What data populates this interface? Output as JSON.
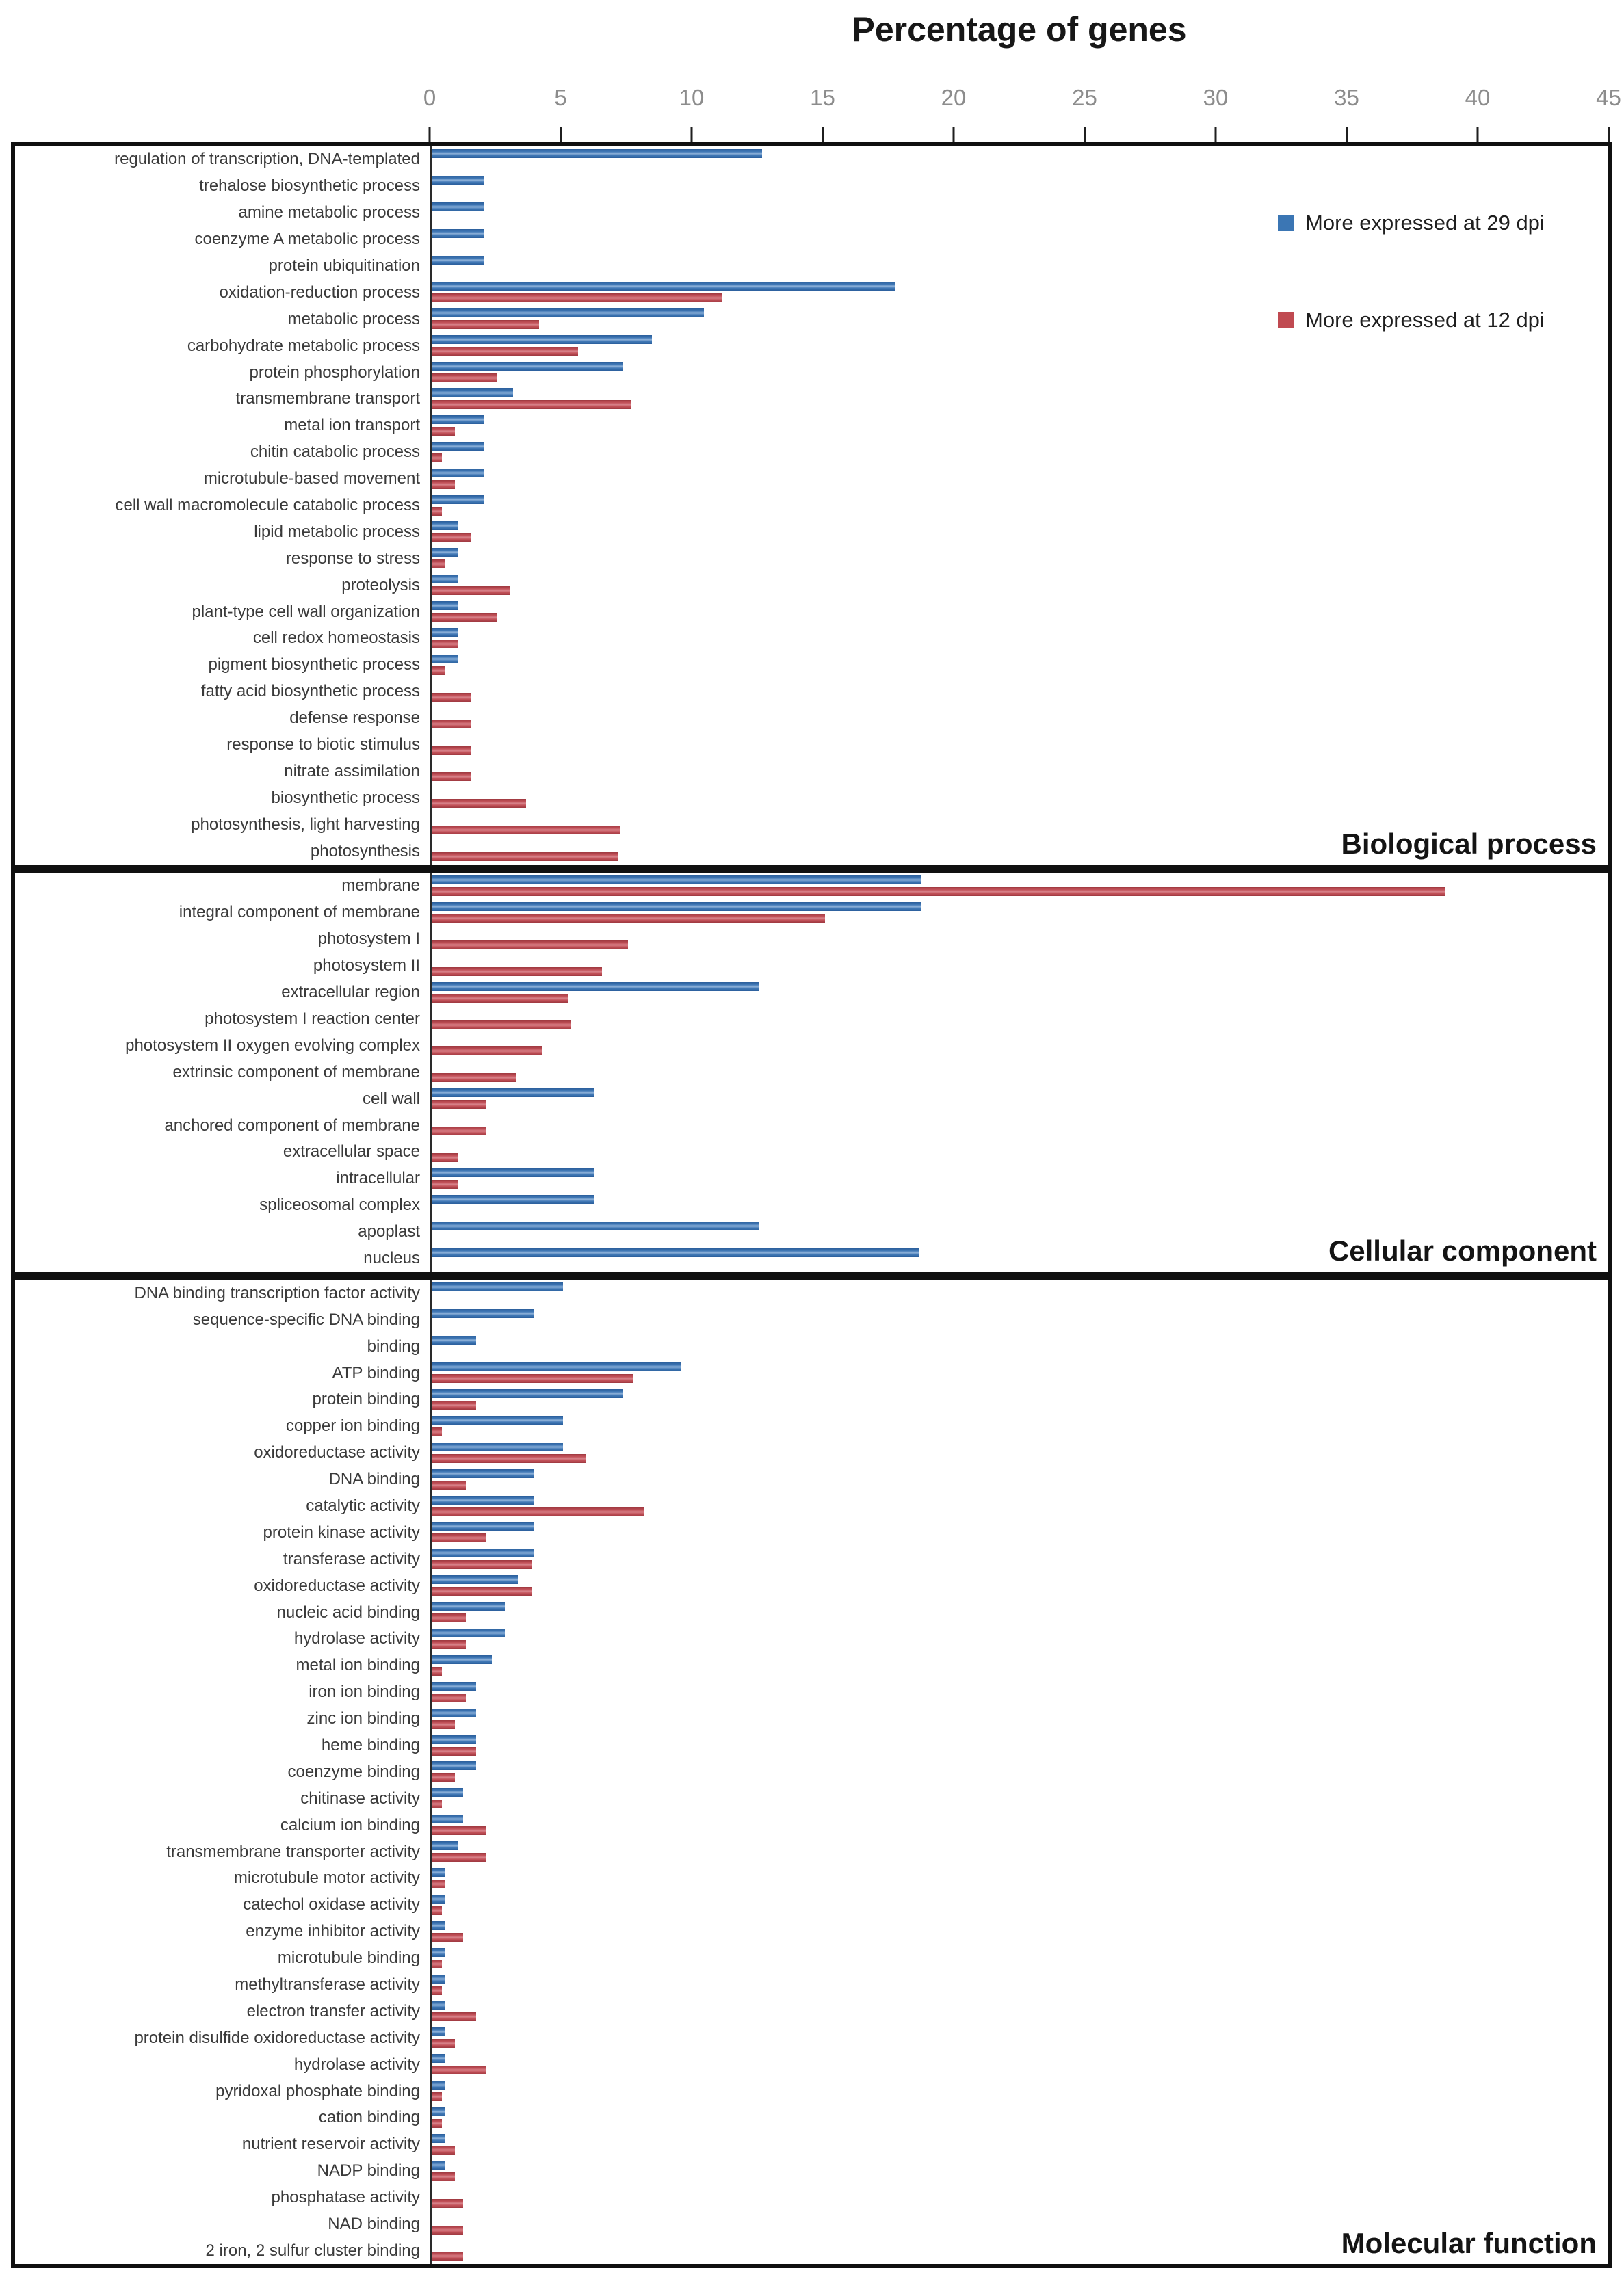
{
  "title": "Percentage of genes",
  "legend": {
    "items": [
      {
        "label": "More expressed at 29 dpi",
        "series": "dpi29"
      },
      {
        "label": "More expressed at 12 dpi",
        "series": "dpi12"
      }
    ]
  },
  "colors": {
    "dpi29_blue": "#3b76b4",
    "dpi12_red": "#c04a51"
  },
  "axis": {
    "min": 0,
    "max": 45,
    "step": 5,
    "tick_labels": [
      "0",
      "5",
      "10",
      "15",
      "20",
      "25",
      "30",
      "35",
      "40",
      "45"
    ]
  },
  "chart_data": {
    "type": "bar",
    "orientation": "horizontal",
    "title": "Percentage of genes",
    "xlabel": "Percentage of genes",
    "xlim": [
      0,
      45
    ],
    "grid": false,
    "legend_position": "top-right",
    "series_names": [
      "More expressed at 29 dpi",
      "More expressed at 12 dpi"
    ],
    "sections": [
      {
        "name": "Biological process",
        "rows": [
          {
            "label": "regulation of transcription, DNA-templated",
            "dpi29": 12.6,
            "dpi12": null
          },
          {
            "label": "trehalose biosynthetic process",
            "dpi29": 2.0,
            "dpi12": null
          },
          {
            "label": "amine metabolic process",
            "dpi29": 2.0,
            "dpi12": null
          },
          {
            "label": "coenzyme A metabolic process",
            "dpi29": 2.0,
            "dpi12": null
          },
          {
            "label": "protein ubiquitination",
            "dpi29": 2.0,
            "dpi12": null
          },
          {
            "label": "oxidation-reduction process",
            "dpi29": 17.7,
            "dpi12": 11.1
          },
          {
            "label": "metabolic process",
            "dpi29": 10.4,
            "dpi12": 4.1
          },
          {
            "label": "carbohydrate metabolic process",
            "dpi29": 8.4,
            "dpi12": 5.6
          },
          {
            "label": "protein phosphorylation",
            "dpi29": 7.3,
            "dpi12": 2.5
          },
          {
            "label": "transmembrane transport",
            "dpi29": 3.1,
            "dpi12": 7.6
          },
          {
            "label": "metal ion transport",
            "dpi29": 2.0,
            "dpi12": 0.9
          },
          {
            "label": "chitin catabolic process",
            "dpi29": 2.0,
            "dpi12": 0.4
          },
          {
            "label": "microtubule-based movement",
            "dpi29": 2.0,
            "dpi12": 0.9
          },
          {
            "label": "cell wall macromolecule catabolic process",
            "dpi29": 2.0,
            "dpi12": 0.4
          },
          {
            "label": "lipid metabolic process",
            "dpi29": 1.0,
            "dpi12": 1.5
          },
          {
            "label": "response to stress",
            "dpi29": 1.0,
            "dpi12": 0.5
          },
          {
            "label": "proteolysis",
            "dpi29": 1.0,
            "dpi12": 3.0
          },
          {
            "label": "plant-type cell wall organization",
            "dpi29": 1.0,
            "dpi12": 2.5
          },
          {
            "label": "cell redox homeostasis",
            "dpi29": 1.0,
            "dpi12": 1.0
          },
          {
            "label": "pigment biosynthetic process",
            "dpi29": 1.0,
            "dpi12": 0.5
          },
          {
            "label": "fatty acid biosynthetic process",
            "dpi29": null,
            "dpi12": 1.5
          },
          {
            "label": "defense response",
            "dpi29": null,
            "dpi12": 1.5
          },
          {
            "label": "response to biotic stimulus",
            "dpi29": null,
            "dpi12": 1.5
          },
          {
            "label": "nitrate assimilation",
            "dpi29": null,
            "dpi12": 1.5
          },
          {
            "label": "biosynthetic process",
            "dpi29": null,
            "dpi12": 3.6
          },
          {
            "label": "photosynthesis, light harvesting",
            "dpi29": null,
            "dpi12": 7.2
          },
          {
            "label": "photosynthesis",
            "dpi29": null,
            "dpi12": 7.1
          }
        ]
      },
      {
        "name": "Cellular component",
        "rows": [
          {
            "label": "membrane",
            "dpi29": 18.7,
            "dpi12": 38.7
          },
          {
            "label": "integral component of membrane",
            "dpi29": 18.7,
            "dpi12": 15.0
          },
          {
            "label": "photosystem I",
            "dpi29": null,
            "dpi12": 7.5
          },
          {
            "label": "photosystem II",
            "dpi29": null,
            "dpi12": 6.5
          },
          {
            "label": "extracellular region",
            "dpi29": 12.5,
            "dpi12": 5.2
          },
          {
            "label": "photosystem I reaction center",
            "dpi29": null,
            "dpi12": 5.3
          },
          {
            "label": "photosystem II oxygen evolving complex",
            "dpi29": null,
            "dpi12": 4.2
          },
          {
            "label": "extrinsic component of membrane",
            "dpi29": null,
            "dpi12": 3.2
          },
          {
            "label": "cell wall",
            "dpi29": 6.2,
            "dpi12": 2.1
          },
          {
            "label": "anchored component of membrane",
            "dpi29": null,
            "dpi12": 2.1
          },
          {
            "label": "extracellular space",
            "dpi29": null,
            "dpi12": 1.0
          },
          {
            "label": "intracellular",
            "dpi29": 6.2,
            "dpi12": 1.0
          },
          {
            "label": "spliceosomal complex",
            "dpi29": 6.2,
            "dpi12": null
          },
          {
            "label": "apoplast",
            "dpi29": 12.5,
            "dpi12": null
          },
          {
            "label": "nucleus",
            "dpi29": 18.6,
            "dpi12": null
          }
        ]
      },
      {
        "name": "Molecular function",
        "rows": [
          {
            "label": "DNA binding transcription factor activity",
            "dpi29": 5.0,
            "dpi12": null
          },
          {
            "label": "sequence-specific DNA binding",
            "dpi29": 3.9,
            "dpi12": null
          },
          {
            "label": "binding",
            "dpi29": 1.7,
            "dpi12": null
          },
          {
            "label": "ATP binding",
            "dpi29": 9.5,
            "dpi12": 7.7
          },
          {
            "label": "protein binding",
            "dpi29": 7.3,
            "dpi12": 1.7
          },
          {
            "label": "copper ion binding",
            "dpi29": 5.0,
            "dpi12": 0.4
          },
          {
            "label": "oxidoreductase activity",
            "dpi29": 5.0,
            "dpi12": 5.9
          },
          {
            "label": "DNA binding",
            "dpi29": 3.9,
            "dpi12": 1.3
          },
          {
            "label": "catalytic activity",
            "dpi29": 3.9,
            "dpi12": 8.1
          },
          {
            "label": "protein kinase activity",
            "dpi29": 3.9,
            "dpi12": 2.1
          },
          {
            "label": "transferase activity",
            "dpi29": 3.9,
            "dpi12": 3.8
          },
          {
            "label": "oxidoreductase activity",
            "dpi29": 3.3,
            "dpi12": 3.8
          },
          {
            "label": "nucleic acid binding",
            "dpi29": 2.8,
            "dpi12": 1.3
          },
          {
            "label": "hydrolase activity",
            "dpi29": 2.8,
            "dpi12": 1.3
          },
          {
            "label": "metal ion binding",
            "dpi29": 2.3,
            "dpi12": 0.4
          },
          {
            "label": "iron ion binding",
            "dpi29": 1.7,
            "dpi12": 1.3
          },
          {
            "label": "zinc ion binding",
            "dpi29": 1.7,
            "dpi12": 0.9
          },
          {
            "label": "heme binding",
            "dpi29": 1.7,
            "dpi12": 1.7
          },
          {
            "label": "coenzyme binding",
            "dpi29": 1.7,
            "dpi12": 0.9
          },
          {
            "label": "chitinase activity",
            "dpi29": 1.2,
            "dpi12": 0.4
          },
          {
            "label": "calcium ion binding",
            "dpi29": 1.2,
            "dpi12": 2.1
          },
          {
            "label": "transmembrane transporter activity",
            "dpi29": 1.0,
            "dpi12": 2.1
          },
          {
            "label": "microtubule motor activity",
            "dpi29": 0.5,
            "dpi12": 0.5
          },
          {
            "label": "catechol oxidase activity",
            "dpi29": 0.5,
            "dpi12": 0.4
          },
          {
            "label": "enzyme inhibitor activity",
            "dpi29": 0.5,
            "dpi12": 1.2
          },
          {
            "label": "microtubule binding",
            "dpi29": 0.5,
            "dpi12": 0.4
          },
          {
            "label": "methyltransferase activity",
            "dpi29": 0.5,
            "dpi12": 0.4
          },
          {
            "label": "electron transfer activity",
            "dpi29": 0.5,
            "dpi12": 1.7
          },
          {
            "label": "protein disulfide oxidoreductase activity",
            "dpi29": 0.5,
            "dpi12": 0.9
          },
          {
            "label": "hydrolase activity",
            "dpi29": 0.5,
            "dpi12": 2.1
          },
          {
            "label": "pyridoxal phosphate binding",
            "dpi29": 0.5,
            "dpi12": 0.4
          },
          {
            "label": "cation binding",
            "dpi29": 0.5,
            "dpi12": 0.4
          },
          {
            "label": "nutrient reservoir activity",
            "dpi29": 0.5,
            "dpi12": 0.9
          },
          {
            "label": "NADP binding",
            "dpi29": 0.5,
            "dpi12": 0.9
          },
          {
            "label": "phosphatase activity",
            "dpi29": null,
            "dpi12": 1.2
          },
          {
            "label": "NAD binding",
            "dpi29": null,
            "dpi12": 1.2
          },
          {
            "label": "2 iron, 2 sulfur cluster binding",
            "dpi29": null,
            "dpi12": 1.2
          }
        ]
      }
    ]
  }
}
